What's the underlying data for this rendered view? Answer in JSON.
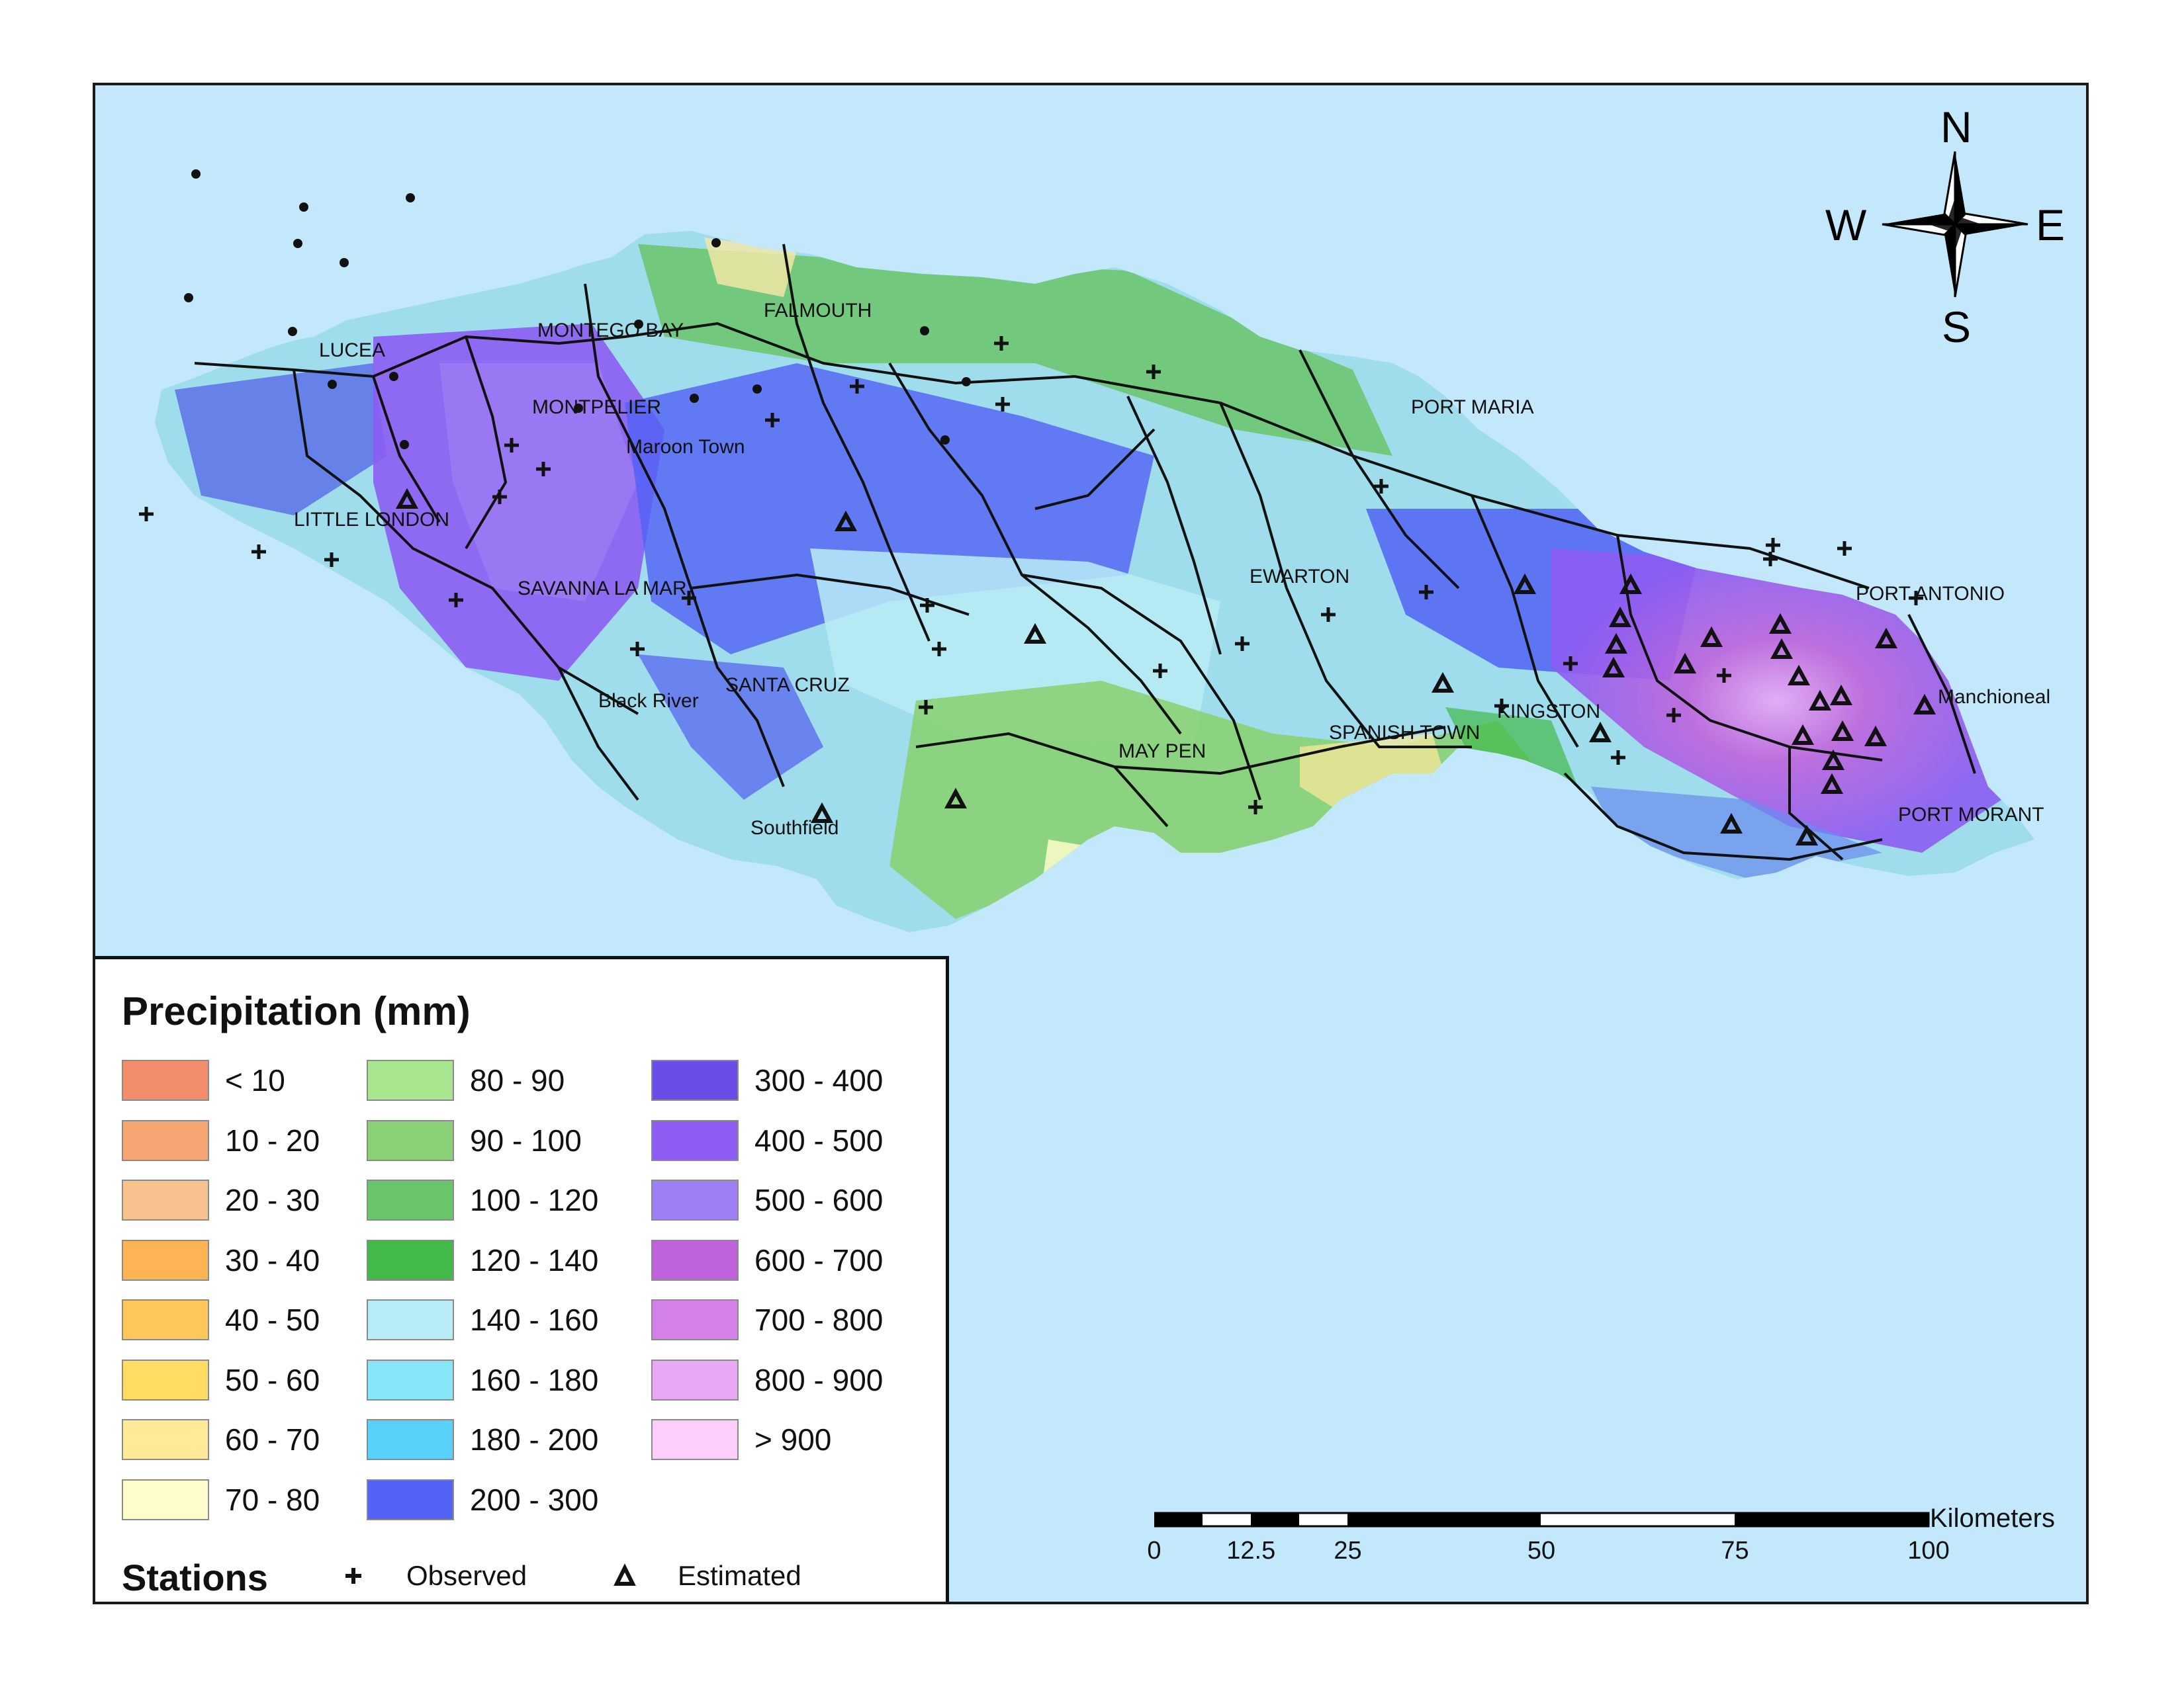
{
  "compass": {
    "north": "N",
    "south": "S",
    "east": "E",
    "west": "W"
  },
  "places": [
    "LUCEA",
    "MONTEGO BAY",
    "FALMOUTH",
    "MONTPELIER",
    "Maroon Town",
    "LITTLE LONDON",
    "SAVANNA LA MAR",
    "Black River",
    "SANTA CRUZ",
    "Southfield",
    "MAY PEN",
    "EWARTON",
    "PORT MARIA",
    "SPANISH TOWN",
    "KINGSTON",
    "PORT ANTONIO",
    "Manchioneal",
    "PORT MORANT"
  ],
  "legend": {
    "title": "Precipitation (mm)",
    "classes": [
      {
        "label": "< 10",
        "color": "#f38d6b"
      },
      {
        "label": "10 - 20",
        "color": "#f5a673"
      },
      {
        "label": "20 - 30",
        "color": "#f7c28e"
      },
      {
        "label": "30 - 40",
        "color": "#fdb455"
      },
      {
        "label": "40 - 50",
        "color": "#ffc75a"
      },
      {
        "label": "50 - 60",
        "color": "#ffdd63"
      },
      {
        "label": "60 - 70",
        "color": "#ffea9a"
      },
      {
        "label": "70 - 80",
        "color": "#fffccb"
      },
      {
        "label": "80 - 90",
        "color": "#a9e690"
      },
      {
        "label": "90 - 100",
        "color": "#8ad175"
      },
      {
        "label": "100 - 120",
        "color": "#6ac46a"
      },
      {
        "label": "120 - 140",
        "color": "#43b94a"
      },
      {
        "label": "140 - 160",
        "color": "#b8ecf7"
      },
      {
        "label": "160 - 180",
        "color": "#86e6f8"
      },
      {
        "label": "180 - 200",
        "color": "#58d2fa"
      },
      {
        "label": "200 - 300",
        "color": "#5162f5"
      },
      {
        "label": "300 - 400",
        "color": "#6b4ce8"
      },
      {
        "label": "400 - 500",
        "color": "#8c5cf3"
      },
      {
        "label": "500 - 600",
        "color": "#a07ff4"
      },
      {
        "label": "600 - 700",
        "color": "#bf63dc"
      },
      {
        "label": "700 - 800",
        "color": "#d581ea"
      },
      {
        "label": "800 - 900",
        "color": "#e8a8f5"
      },
      {
        "label": "> 900",
        "color": "#fbcffa"
      }
    ],
    "stations_title": "Stations",
    "observed_label": "Observed",
    "estimated_label": "Estimated"
  },
  "scale": {
    "unit": "Kilometers",
    "ticks": [
      "0",
      "12.5",
      "25",
      "50",
      "75",
      "100"
    ]
  }
}
